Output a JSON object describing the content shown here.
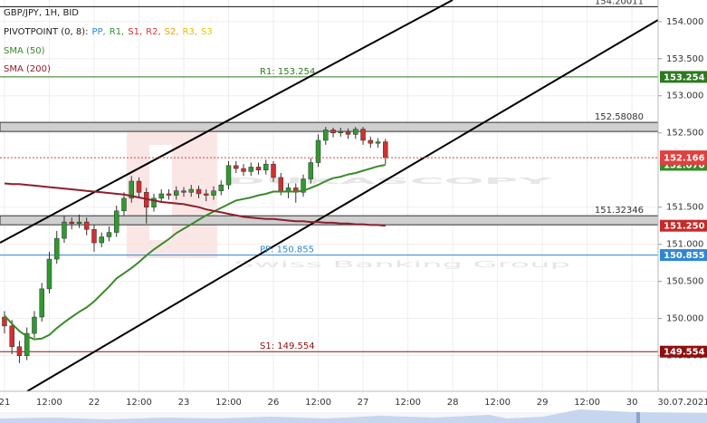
{
  "chart_data": {
    "type": "candlestick",
    "title": "GBP/JPY, 1H, BID",
    "pivot_legend": {
      "name": "PIVOTPOINT (0, 8):",
      "items": [
        {
          "name": "PP,",
          "color": "#2f86d6"
        },
        {
          "name": "R1,",
          "color": "#2a9a2a"
        },
        {
          "name": "S1,",
          "color": "#d42a2a"
        },
        {
          "name": "R2,",
          "color": "#e03a3a"
        },
        {
          "name": "S2,",
          "color": "#f0a000"
        },
        {
          "name": "R3,",
          "color": "#e6b800"
        },
        {
          "name": "S3",
          "color": "#e8c800"
        }
      ]
    },
    "watermark": "DUKASCOPY",
    "watermark_subtitle": "Swiss Banking Group",
    "xlim": [
      -1.2,
      175
    ],
    "xticks": [
      {
        "value": 0,
        "label": "21"
      },
      {
        "value": 12,
        "label": "12:00"
      },
      {
        "value": 24,
        "label": "22"
      },
      {
        "value": 36,
        "label": "12:00"
      },
      {
        "value": 48,
        "label": "23"
      },
      {
        "value": 60,
        "label": "12:00"
      },
      {
        "value": 72,
        "label": "26"
      },
      {
        "value": 84,
        "label": "12:00"
      },
      {
        "value": 96,
        "label": "27"
      },
      {
        "value": 108,
        "label": "12:00"
      },
      {
        "value": 120,
        "label": "28"
      },
      {
        "value": 132,
        "label": "12:00"
      },
      {
        "value": 144,
        "label": "29"
      },
      {
        "value": 156,
        "label": "12:00"
      },
      {
        "value": 168,
        "label": "30"
      }
    ],
    "x_end_label": "30.07.2021",
    "ylim": [
      149.02,
      154.29
    ],
    "yticks": [
      {
        "value": 154,
        "label": "154.000"
      },
      {
        "value": 153.5,
        "label": "153.500"
      },
      {
        "value": 153,
        "label": "153.000"
      },
      {
        "value": 152.5,
        "label": "152.500"
      },
      {
        "value": 151.5,
        "label": "151.500"
      },
      {
        "value": 151,
        "label": "151.000"
      },
      {
        "value": 150.5,
        "label": "150.500"
      },
      {
        "value": 150,
        "label": "150.000"
      },
      {
        "value": 149.5,
        "label": "149.500"
      }
    ],
    "grid": true,
    "up_color": "#2f9a2f",
    "down_color": "#d03030",
    "x": [
      0,
      2,
      4,
      6,
      8,
      10,
      12,
      14,
      16,
      18,
      20,
      22,
      24,
      26,
      28,
      30,
      32,
      34,
      36,
      38,
      40,
      42,
      44,
      46,
      48,
      50,
      52,
      54,
      56,
      58,
      60,
      62,
      64,
      66,
      68,
      70,
      72,
      74,
      76,
      78,
      80,
      82,
      84,
      86,
      88,
      90,
      92,
      94,
      96,
      98,
      100,
      102
    ],
    "open": [
      150.02,
      149.9,
      149.62,
      149.5,
      149.8,
      150.02,
      150.4,
      150.8,
      151.08,
      151.3,
      151.28,
      151.3,
      151.2,
      151.02,
      151.1,
      151.16,
      151.45,
      151.62,
      151.85,
      151.7,
      151.5,
      151.62,
      151.68,
      151.66,
      151.72,
      151.7,
      151.74,
      151.68,
      151.66,
      151.72,
      151.8,
      152.06,
      152.02,
      151.98,
      152.04,
      152.0,
      152.08,
      151.9,
      151.72,
      151.76,
      151.7,
      151.88,
      152.1,
      152.4,
      152.54,
      152.5,
      152.52,
      152.48,
      152.55,
      152.4,
      152.36,
      152.38
    ],
    "high": [
      150.1,
      149.98,
      149.7,
      149.88,
      150.1,
      150.48,
      150.9,
      151.18,
      151.38,
      151.36,
      151.4,
      151.36,
      151.26,
      151.16,
      151.24,
      151.52,
      151.7,
      151.92,
      151.9,
      151.76,
      151.68,
      151.74,
      151.74,
      151.78,
      151.77,
      151.8,
      151.79,
      151.74,
      151.78,
      151.86,
      152.12,
      152.12,
      152.08,
      152.1,
      152.1,
      152.14,
      152.12,
      151.96,
      151.82,
      151.82,
      151.94,
      152.16,
      152.48,
      152.58,
      152.57,
      152.57,
      152.56,
      152.58,
      152.58,
      152.45,
      152.43,
      152.42
    ],
    "low": [
      149.8,
      149.52,
      149.4,
      149.44,
      149.74,
      149.96,
      150.34,
      150.74,
      151.02,
      151.2,
      151.22,
      151.12,
      150.9,
      150.96,
      151.04,
      151.1,
      151.38,
      151.56,
      151.62,
      151.28,
      151.44,
      151.56,
      151.6,
      151.6,
      151.64,
      151.64,
      151.62,
      151.58,
      151.6,
      151.66,
      151.74,
      151.96,
      151.92,
      151.92,
      151.94,
      151.94,
      151.84,
      151.66,
      151.62,
      151.56,
      151.64,
      151.82,
      152.04,
      152.34,
      152.44,
      152.45,
      152.42,
      152.42,
      152.34,
      152.3,
      152.3,
      152.08
    ],
    "close": [
      149.9,
      149.62,
      149.5,
      149.8,
      150.02,
      150.4,
      150.8,
      151.08,
      151.3,
      151.28,
      151.3,
      151.2,
      151.02,
      151.1,
      151.16,
      151.45,
      151.62,
      151.85,
      151.7,
      151.5,
      151.62,
      151.68,
      151.66,
      151.72,
      151.7,
      151.74,
      151.68,
      151.66,
      151.72,
      151.8,
      152.06,
      152.02,
      151.98,
      152.04,
      152.0,
      152.08,
      151.9,
      151.72,
      151.76,
      151.7,
      151.88,
      152.1,
      152.4,
      152.54,
      152.5,
      152.52,
      152.48,
      152.55,
      152.4,
      152.36,
      152.38,
      152.166
    ],
    "series": [
      {
        "name": "SMA (50)",
        "color": "#3a8a2a",
        "values": [
          150.04,
          149.93,
          149.83,
          149.76,
          149.72,
          149.73,
          149.78,
          149.87,
          149.95,
          150.02,
          150.09,
          150.15,
          150.23,
          150.33,
          150.43,
          150.54,
          150.61,
          150.68,
          150.76,
          150.85,
          150.93,
          151.0,
          151.07,
          151.15,
          151.21,
          151.27,
          151.33,
          151.39,
          151.44,
          151.49,
          151.54,
          151.59,
          151.61,
          151.63,
          151.66,
          151.68,
          151.71,
          151.71,
          151.71,
          151.71,
          151.72,
          151.76,
          151.8,
          151.85,
          151.89,
          151.91,
          151.94,
          151.96,
          151.99,
          152.02,
          152.05,
          152.07
        ]
      },
      {
        "name": "SMA (200)",
        "color": "#8e1f2c",
        "values": [
          151.82,
          151.81,
          151.81,
          151.8,
          151.79,
          151.78,
          151.77,
          151.76,
          151.75,
          151.74,
          151.73,
          151.72,
          151.71,
          151.7,
          151.69,
          151.68,
          151.67,
          151.65,
          151.63,
          151.61,
          151.59,
          151.57,
          151.56,
          151.55,
          151.54,
          151.52,
          151.5,
          151.47,
          151.45,
          151.43,
          151.41,
          151.39,
          151.37,
          151.36,
          151.35,
          151.34,
          151.34,
          151.33,
          151.32,
          151.31,
          151.31,
          151.3,
          151.3,
          151.29,
          151.29,
          151.28,
          151.28,
          151.27,
          151.27,
          151.26,
          151.26,
          151.25
        ]
      }
    ],
    "levels": [
      {
        "value": 154.20011,
        "color": "#111111",
        "style": "line"
      },
      {
        "value": 152.5808,
        "label": "152.58080",
        "color": "#333333",
        "style": "band"
      },
      {
        "value": 151.32346,
        "color": "#333333",
        "style": "band"
      },
      {
        "value": 153.254,
        "label": "R1: 153.254",
        "color": "#2e7a1e",
        "style": "line",
        "badge": true
      },
      {
        "value": 150.855,
        "label": "PP: 150.855",
        "color": "#2f86d6",
        "style": "line",
        "badge": true
      },
      {
        "value": 149.554,
        "label": "S1: 149.554",
        "color": "#8e1010",
        "style": "line",
        "badge": true
      }
    ],
    "badges": [
      {
        "value": 151.25,
        "label": "151.250",
        "color": "#c42a2a"
      },
      {
        "value": 152.07,
        "label": "152.070",
        "color": "#3a8a2a"
      },
      {
        "value": 152.166,
        "color": "#e04040",
        "current": true
      }
    ]
  }
}
